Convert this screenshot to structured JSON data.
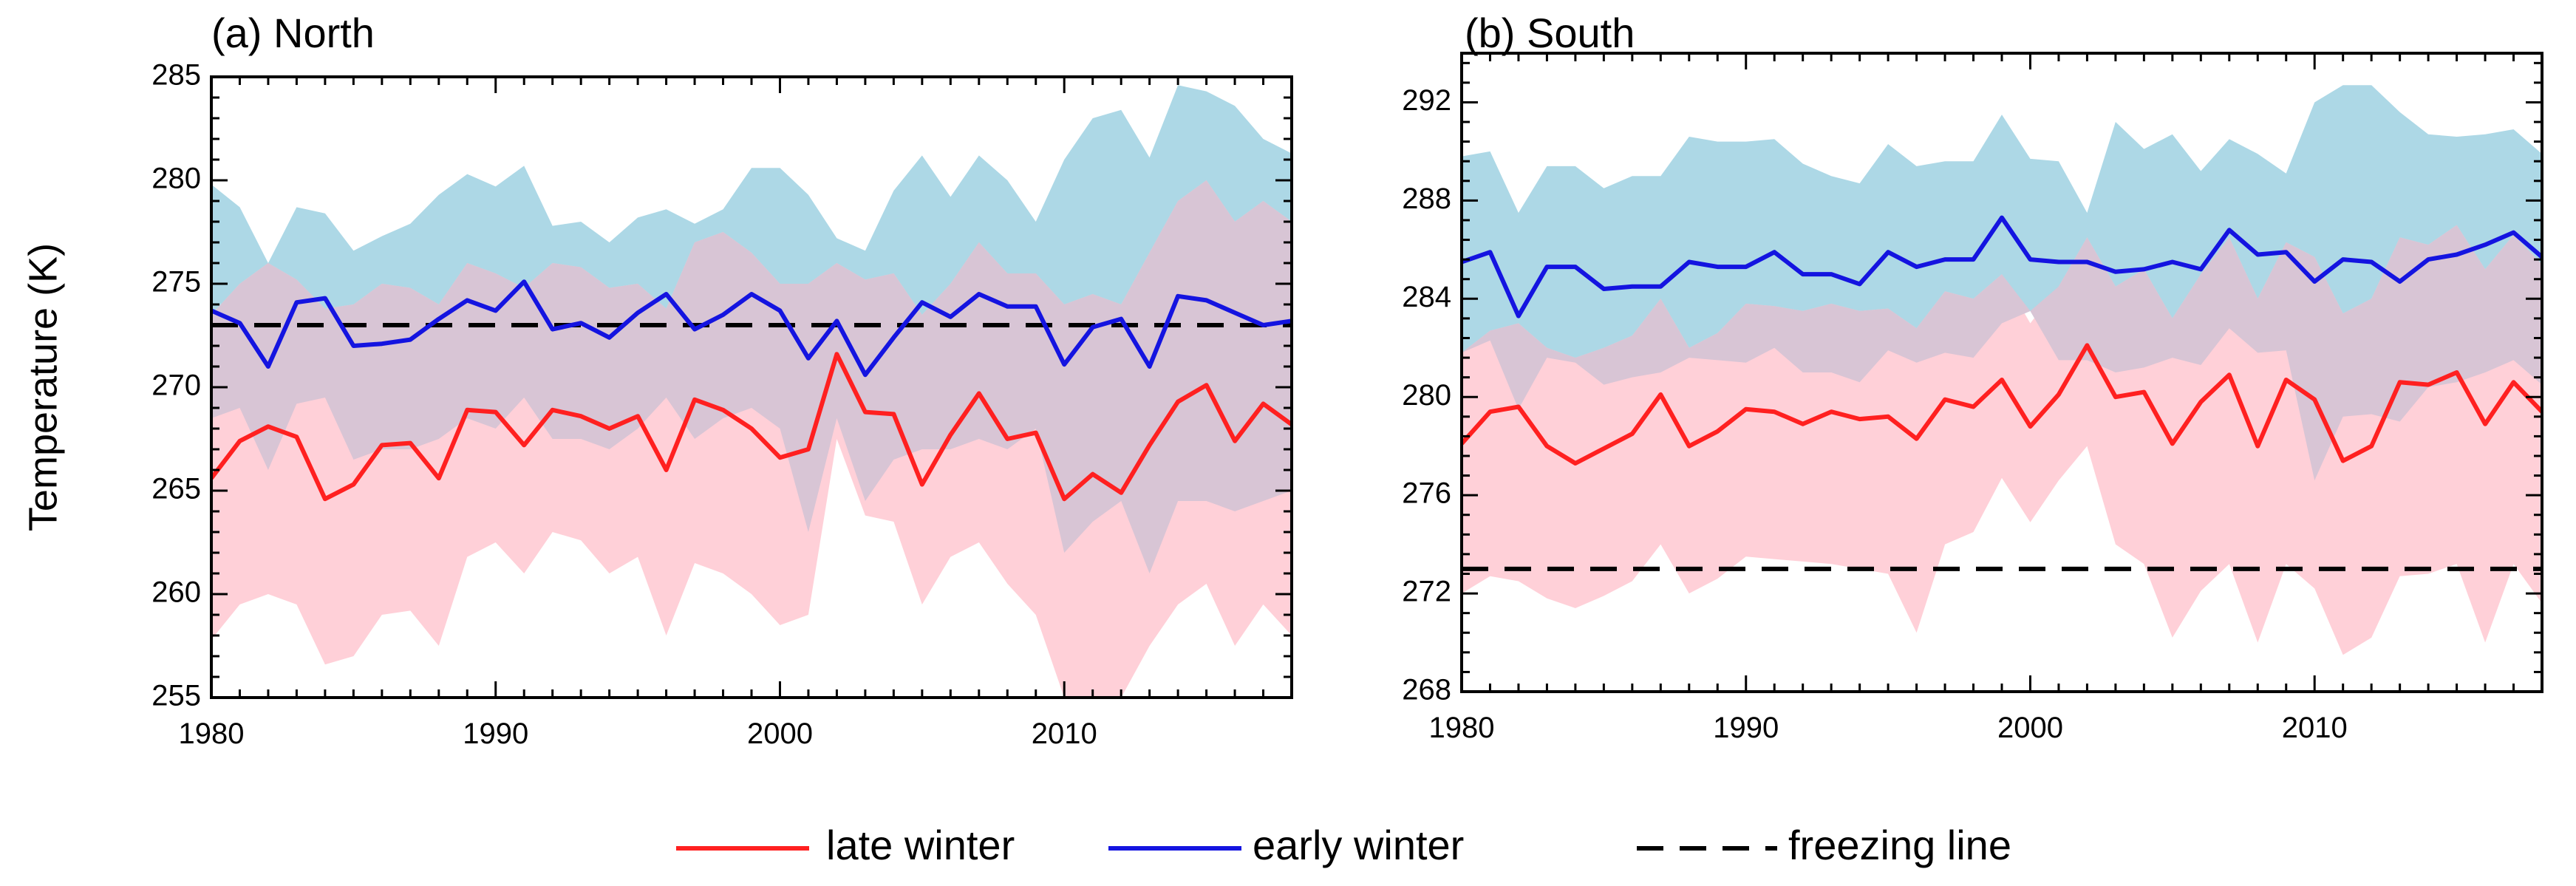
{
  "ylabel": "Temperature (K)",
  "legend": {
    "late": {
      "label": "late winter",
      "color": "#ff2020"
    },
    "early": {
      "label": "early winter",
      "color": "#1414e0"
    },
    "freeze": {
      "label": "freezing line",
      "color": "#000000"
    }
  },
  "band_colors": {
    "late": "#ffd0d8",
    "early": "#add8e6",
    "overlap": "#d8c5d5"
  },
  "chart_data": [
    {
      "type": "line",
      "title": "(a) North",
      "xlabel": "",
      "ylabel": "Temperature (K)",
      "xlim": [
        1980,
        2018
      ],
      "ylim": [
        255,
        285
      ],
      "xticks": [
        1980,
        1990,
        2000,
        2010
      ],
      "yticks": [
        255,
        260,
        265,
        270,
        275,
        280,
        285
      ],
      "freezing_line": 273,
      "x": [
        1980,
        1981,
        1982,
        1983,
        1984,
        1985,
        1986,
        1987,
        1988,
        1989,
        1990,
        1991,
        1992,
        1993,
        1994,
        1995,
        1996,
        1997,
        1998,
        1999,
        2000,
        2001,
        2002,
        2003,
        2004,
        2005,
        2006,
        2007,
        2008,
        2009,
        2010,
        2011,
        2012,
        2013,
        2014,
        2015,
        2016,
        2017,
        2018
      ],
      "series": [
        {
          "name": "late winter",
          "values": [
            265.6,
            267.4,
            268.1,
            267.6,
            264.6,
            265.3,
            267.2,
            267.3,
            265.6,
            268.9,
            268.8,
            267.2,
            268.9,
            268.6,
            268.0,
            268.6,
            266.0,
            269.4,
            268.9,
            268.0,
            266.6,
            267.0,
            271.6,
            268.8,
            268.7,
            265.3,
            267.7,
            269.7,
            267.5,
            267.8,
            264.6,
            265.8,
            264.9,
            267.2,
            269.3,
            270.1,
            267.4,
            269.2,
            268.2
          ],
          "upper": [
            273.5,
            275.0,
            276.0,
            275.2,
            273.8,
            274.0,
            275.0,
            274.8,
            274.0,
            276.0,
            275.5,
            274.8,
            276.0,
            275.8,
            274.8,
            275.0,
            273.8,
            277.0,
            277.5,
            276.5,
            275.0,
            275.0,
            276.0,
            275.2,
            275.5,
            273.5,
            275.0,
            277.0,
            275.5,
            275.5,
            274.0,
            274.5,
            274.0,
            276.5,
            279.0,
            280.0,
            278.0,
            279.0,
            278.0
          ],
          "lower": [
            257.8,
            259.5,
            260.0,
            259.5,
            256.6,
            257.0,
            259.0,
            259.2,
            257.5,
            261.8,
            262.5,
            261.0,
            263.0,
            262.6,
            261.0,
            261.8,
            258.0,
            261.5,
            261.0,
            260.0,
            258.5,
            259.0,
            267.5,
            263.8,
            263.5,
            259.5,
            261.8,
            262.5,
            260.5,
            259.0,
            255.0,
            255.0,
            255.0,
            257.5,
            259.5,
            260.5,
            257.5,
            259.5,
            258.0
          ]
        },
        {
          "name": "early winter",
          "values": [
            273.7,
            273.1,
            271.0,
            274.1,
            274.3,
            272.0,
            272.1,
            272.3,
            273.3,
            274.2,
            273.7,
            275.1,
            272.8,
            273.1,
            272.4,
            273.6,
            274.5,
            272.8,
            273.5,
            274.5,
            273.7,
            271.4,
            273.2,
            270.6,
            272.4,
            274.1,
            273.4,
            274.5,
            273.9,
            273.9,
            271.1,
            272.9,
            273.3,
            271.0,
            274.4,
            274.2,
            273.6,
            273.0,
            273.2
          ],
          "upper": [
            279.8,
            278.7,
            276.0,
            278.7,
            278.4,
            276.6,
            277.3,
            277.9,
            279.3,
            280.3,
            279.7,
            280.7,
            277.8,
            278.0,
            277.0,
            278.2,
            278.6,
            277.9,
            278.6,
            280.6,
            280.6,
            279.3,
            277.2,
            276.6,
            279.5,
            281.2,
            279.2,
            281.2,
            280.0,
            278.0,
            281.0,
            283.0,
            283.4,
            281.1,
            284.6,
            284.3,
            283.6,
            282.0,
            281.3
          ],
          "lower": [
            268.5,
            269.0,
            266.0,
            269.2,
            269.5,
            266.5,
            267.0,
            267.0,
            267.5,
            268.5,
            268.0,
            269.5,
            267.5,
            267.5,
            267.0,
            268.0,
            269.5,
            267.5,
            268.5,
            269.0,
            268.0,
            263.0,
            268.5,
            264.5,
            266.5,
            267.0,
            267.0,
            267.5,
            267.0,
            268.0,
            262.0,
            263.5,
            264.5,
            261.0,
            264.5,
            264.5,
            264.0,
            264.5,
            265.0
          ]
        }
      ]
    },
    {
      "type": "line",
      "title": "(b) South",
      "xlabel": "",
      "ylabel": "",
      "xlim": [
        1980,
        2018
      ],
      "ylim": [
        268,
        294
      ],
      "xticks": [
        1980,
        1990,
        2000,
        2010
      ],
      "yticks": [
        268,
        272,
        276,
        280,
        284,
        288,
        292
      ],
      "freezing_line": 273,
      "x": [
        1980,
        1981,
        1982,
        1983,
        1984,
        1985,
        1986,
        1987,
        1988,
        1989,
        1990,
        1991,
        1992,
        1993,
        1994,
        1995,
        1996,
        1997,
        1998,
        1999,
        2000,
        2001,
        2002,
        2003,
        2004,
        2005,
        2006,
        2007,
        2008,
        2009,
        2010,
        2011,
        2012,
        2013,
        2014,
        2015,
        2016,
        2017,
        2018
      ],
      "series": [
        {
          "name": "late winter",
          "values": [
            278.1,
            279.4,
            279.6,
            278.0,
            277.3,
            277.9,
            278.5,
            280.1,
            278.0,
            278.6,
            279.5,
            279.4,
            278.9,
            279.4,
            279.1,
            279.2,
            278.3,
            279.9,
            279.6,
            280.7,
            278.8,
            280.1,
            282.1,
            280.0,
            280.2,
            278.1,
            279.8,
            280.9,
            278.0,
            280.7,
            279.9,
            277.4,
            278.0,
            280.6,
            280.5,
            281.0,
            278.9,
            280.6,
            279.4
          ],
          "upper": [
            281.8,
            282.7,
            283.0,
            282.0,
            281.6,
            282.0,
            282.5,
            284.0,
            282.0,
            282.6,
            283.8,
            283.7,
            283.5,
            283.8,
            283.5,
            283.6,
            282.8,
            284.3,
            284.0,
            285.0,
            283.0,
            284.5,
            286.5,
            284.5,
            285.2,
            283.2,
            285.0,
            286.5,
            284.0,
            286.3,
            285.7,
            283.4,
            284.0,
            286.5,
            286.2,
            287.0,
            285.2,
            286.6,
            285.4
          ],
          "lower": [
            272.0,
            272.7,
            272.5,
            271.8,
            271.4,
            271.9,
            272.5,
            274.0,
            272.0,
            272.6,
            273.5,
            273.4,
            273.3,
            273.2,
            273.0,
            272.8,
            270.4,
            274.0,
            274.5,
            276.7,
            274.9,
            276.6,
            278.0,
            274.0,
            273.2,
            270.2,
            272.1,
            273.2,
            270.0,
            273.2,
            272.2,
            269.5,
            270.2,
            272.7,
            272.8,
            273.2,
            270.0,
            273.2,
            271.6
          ]
        },
        {
          "name": "early winter",
          "values": [
            285.5,
            285.9,
            283.3,
            285.3,
            285.3,
            284.4,
            284.5,
            284.5,
            285.5,
            285.3,
            285.3,
            285.9,
            285.0,
            285.0,
            284.6,
            285.9,
            285.3,
            285.6,
            285.6,
            287.3,
            285.6,
            285.5,
            285.5,
            285.1,
            285.2,
            285.5,
            285.2,
            286.8,
            285.8,
            285.9,
            284.7,
            285.6,
            285.5,
            284.7,
            285.6,
            285.8,
            286.2,
            286.7,
            285.7
          ],
          "upper": [
            289.8,
            290.0,
            287.5,
            289.4,
            289.4,
            288.5,
            289.0,
            289.0,
            290.6,
            290.4,
            290.4,
            290.5,
            289.5,
            289.0,
            288.7,
            290.3,
            289.4,
            289.6,
            289.6,
            291.5,
            289.7,
            289.6,
            287.5,
            291.2,
            290.1,
            290.7,
            289.2,
            290.5,
            289.9,
            289.1,
            292.0,
            292.7,
            292.7,
            291.6,
            290.7,
            290.6,
            290.7,
            290.9,
            289.9
          ],
          "lower": [
            281.8,
            282.3,
            279.5,
            281.6,
            281.4,
            280.5,
            280.8,
            281.0,
            281.6,
            281.5,
            281.4,
            282.0,
            281.0,
            281.0,
            280.6,
            281.9,
            281.4,
            281.8,
            281.6,
            283.0,
            283.5,
            281.5,
            281.5,
            281.0,
            281.2,
            281.6,
            281.3,
            282.8,
            281.8,
            281.9,
            276.6,
            279.2,
            279.3,
            279.0,
            280.4,
            280.6,
            281.0,
            281.5,
            280.5
          ]
        }
      ]
    }
  ]
}
